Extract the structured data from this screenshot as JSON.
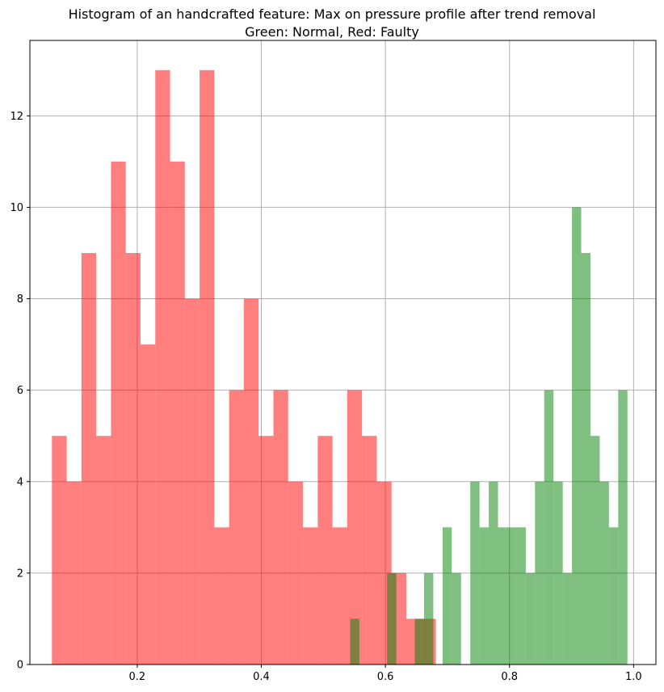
{
  "chart_data": {
    "type": "bar",
    "title": "Histogram of an handcrafted feature: Max on pressure profile after trend removal",
    "subtitle": "Green: Normal, Red: Faulty",
    "xlabel": "",
    "ylabel": "",
    "xlim": [
      0.027,
      1.036
    ],
    "ylim": [
      0,
      13.65
    ],
    "grid": true,
    "x_ticks": [
      "0.2",
      "0.4",
      "0.6",
      "0.8",
      "1.0"
    ],
    "y_ticks": [
      "0",
      "2",
      "4",
      "6",
      "8",
      "10",
      "12"
    ],
    "series": [
      {
        "name": "Faulty",
        "color": "#ff0000",
        "alpha": 0.5,
        "bin_start": 0.0625,
        "bin_width": 0.0238,
        "values": [
          5,
          4,
          9,
          5,
          11,
          9,
          7,
          13,
          11,
          8,
          13,
          3,
          6,
          8,
          5,
          6,
          4,
          3,
          5,
          3,
          6,
          5,
          4,
          2,
          1,
          1
        ]
      },
      {
        "name": "Normal",
        "color": "#008000",
        "alpha": 0.5,
        "bin_start": 0.5431,
        "bin_width": 0.0149,
        "values": [
          1,
          0,
          0,
          0,
          2,
          0,
          0,
          1,
          2,
          0,
          3,
          2,
          0,
          4,
          3,
          4,
          3,
          3,
          3,
          2,
          4,
          6,
          4,
          2,
          10,
          9,
          5,
          4,
          3,
          6
        ]
      }
    ]
  }
}
